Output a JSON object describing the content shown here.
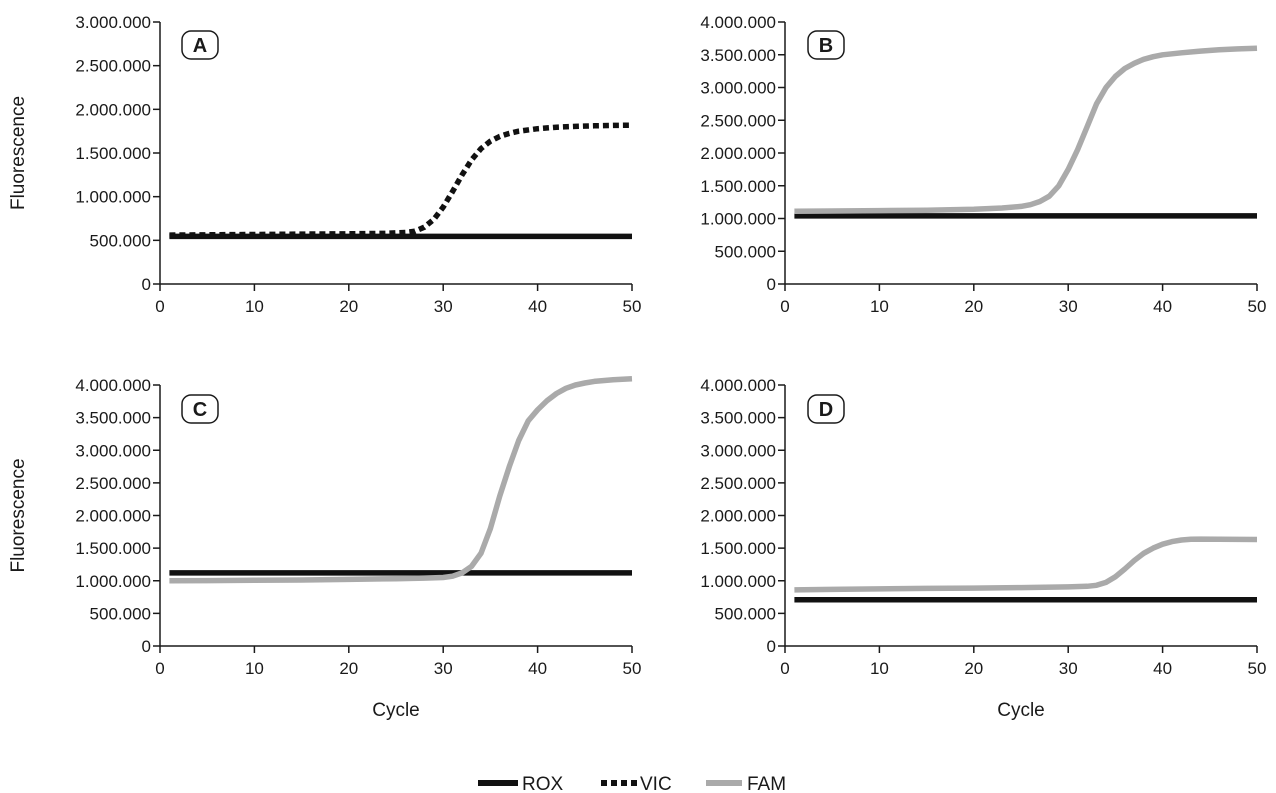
{
  "legend": {
    "items": [
      {
        "label": "ROX",
        "style": "solid",
        "color": "#111111"
      },
      {
        "label": "VIC",
        "style": "dotted",
        "color": "#111111"
      },
      {
        "label": "FAM",
        "style": "solid",
        "color": "#aaaaaa"
      }
    ],
    "placement": "bottom-center"
  },
  "chart_data": [
    {
      "type": "line",
      "panel": "A",
      "xlabel": "",
      "ylabel": "Fluorescence",
      "xlim": [
        0,
        50
      ],
      "ylim": [
        0,
        3000000
      ],
      "xticks": [
        0,
        10,
        20,
        30,
        40,
        50
      ],
      "xtick_labels": [
        "0",
        "10",
        "20",
        "30",
        "40",
        "50"
      ],
      "yticks": [
        0,
        500000,
        1000000,
        1500000,
        2000000,
        2500000,
        3000000
      ],
      "ytick_labels": [
        "0",
        "500.000",
        "1.000.000",
        "1.500.000",
        "2.000.000",
        "2.500.000",
        "3.000.000"
      ],
      "series": [
        {
          "name": "ROX",
          "style": "solid",
          "color": "#111111",
          "x": [
            1,
            50
          ],
          "y": [
            545000,
            545000
          ]
        },
        {
          "name": "VIC",
          "style": "dotted",
          "color": "#111111",
          "x": [
            1,
            5,
            10,
            15,
            20,
            24,
            26,
            27,
            28,
            29,
            30,
            31,
            32,
            33,
            34,
            35,
            36,
            37,
            38,
            40,
            42,
            44,
            46,
            48,
            50
          ],
          "y": [
            560000,
            563000,
            567000,
            571000,
            575000,
            581000,
            590000,
            605000,
            650000,
            740000,
            880000,
            1060000,
            1250000,
            1420000,
            1550000,
            1635000,
            1690000,
            1725000,
            1750000,
            1778000,
            1795000,
            1805000,
            1812000,
            1816000,
            1818000
          ]
        }
      ]
    },
    {
      "type": "line",
      "panel": "B",
      "xlabel": "",
      "ylabel": "",
      "xlim": [
        0,
        50
      ],
      "ylim": [
        0,
        4000000
      ],
      "xticks": [
        0,
        10,
        20,
        30,
        40,
        50
      ],
      "xtick_labels": [
        "0",
        "10",
        "20",
        "30",
        "40",
        "50"
      ],
      "yticks": [
        0,
        500000,
        1000000,
        1500000,
        2000000,
        2500000,
        3000000,
        3500000,
        4000000
      ],
      "ytick_labels": [
        "0",
        "500.000",
        "1.000.000",
        "1.500.000",
        "2.000.000",
        "2.500.000",
        "3.000.000",
        "3.500.000",
        "4.000.000"
      ],
      "series": [
        {
          "name": "ROX",
          "style": "solid",
          "color": "#111111",
          "x": [
            1,
            50
          ],
          "y": [
            1040000,
            1040000
          ]
        },
        {
          "name": "FAM",
          "style": "solid",
          "color": "#aaaaaa",
          "x": [
            1,
            5,
            10,
            15,
            20,
            23,
            25,
            26,
            27,
            28,
            29,
            30,
            31,
            32,
            33,
            34,
            35,
            36,
            37,
            38,
            39,
            40,
            42,
            44,
            46,
            48,
            50
          ],
          "y": [
            1110000,
            1115000,
            1120000,
            1125000,
            1140000,
            1160000,
            1185000,
            1210000,
            1260000,
            1340000,
            1500000,
            1750000,
            2050000,
            2400000,
            2750000,
            3000000,
            3170000,
            3290000,
            3370000,
            3430000,
            3470000,
            3500000,
            3530000,
            3555000,
            3575000,
            3590000,
            3600000
          ]
        }
      ]
    },
    {
      "type": "line",
      "panel": "C",
      "xlabel": "Cycle",
      "ylabel": "Fluorescence",
      "xlim": [
        0,
        50
      ],
      "ylim": [
        0,
        4000000
      ],
      "xticks": [
        0,
        10,
        20,
        30,
        40,
        50
      ],
      "xtick_labels": [
        "0",
        "10",
        "20",
        "30",
        "40",
        "50"
      ],
      "yticks": [
        0,
        500000,
        1000000,
        1500000,
        2000000,
        2500000,
        3000000,
        3500000,
        4000000
      ],
      "ytick_labels": [
        "0",
        "500.000",
        "1.000.000",
        "1.500.000",
        "2.000.000",
        "2.500.000",
        "3.000.000",
        "3.500.000",
        "4.000.000"
      ],
      "series": [
        {
          "name": "ROX",
          "style": "solid",
          "color": "#111111",
          "x": [
            1,
            50
          ],
          "y": [
            1120000,
            1120000
          ]
        },
        {
          "name": "FAM",
          "style": "solid",
          "color": "#aaaaaa",
          "x": [
            1,
            5,
            10,
            15,
            20,
            25,
            28,
            30,
            31,
            32,
            33,
            34,
            35,
            36,
            37,
            38,
            39,
            40,
            41,
            42,
            43,
            44,
            45,
            46,
            48,
            50
          ],
          "y": [
            1000000,
            1003000,
            1007000,
            1012000,
            1020000,
            1032000,
            1040000,
            1050000,
            1070000,
            1120000,
            1220000,
            1420000,
            1800000,
            2300000,
            2750000,
            3150000,
            3450000,
            3620000,
            3760000,
            3870000,
            3950000,
            4000000,
            4030000,
            4055000,
            4080000,
            4095000
          ]
        }
      ]
    },
    {
      "type": "line",
      "panel": "D",
      "xlabel": "Cycle",
      "ylabel": "",
      "xlim": [
        0,
        50
      ],
      "ylim": [
        0,
        4000000
      ],
      "xticks": [
        0,
        10,
        20,
        30,
        40,
        50
      ],
      "xtick_labels": [
        "0",
        "10",
        "20",
        "30",
        "40",
        "50"
      ],
      "yticks": [
        0,
        500000,
        1000000,
        1500000,
        2000000,
        2500000,
        3000000,
        3500000,
        4000000
      ],
      "ytick_labels": [
        "0",
        "500.000",
        "1.000.000",
        "1.500.000",
        "2.000.000",
        "2.500.000",
        "3.000.000",
        "3.500.000",
        "4.000.000"
      ],
      "series": [
        {
          "name": "ROX",
          "style": "solid",
          "color": "#111111",
          "x": [
            1,
            50
          ],
          "y": [
            710000,
            710000
          ]
        },
        {
          "name": "FAM",
          "style": "solid",
          "color": "#aaaaaa",
          "x": [
            1,
            5,
            10,
            15,
            20,
            25,
            30,
            32,
            33,
            34,
            35,
            36,
            37,
            38,
            39,
            40,
            41,
            42,
            43,
            44,
            46,
            48,
            50
          ],
          "y": [
            860000,
            868000,
            875000,
            882000,
            888000,
            895000,
            905000,
            915000,
            930000,
            975000,
            1060000,
            1180000,
            1310000,
            1420000,
            1500000,
            1560000,
            1600000,
            1625000,
            1635000,
            1638000,
            1636000,
            1634000,
            1632000
          ]
        }
      ]
    }
  ]
}
